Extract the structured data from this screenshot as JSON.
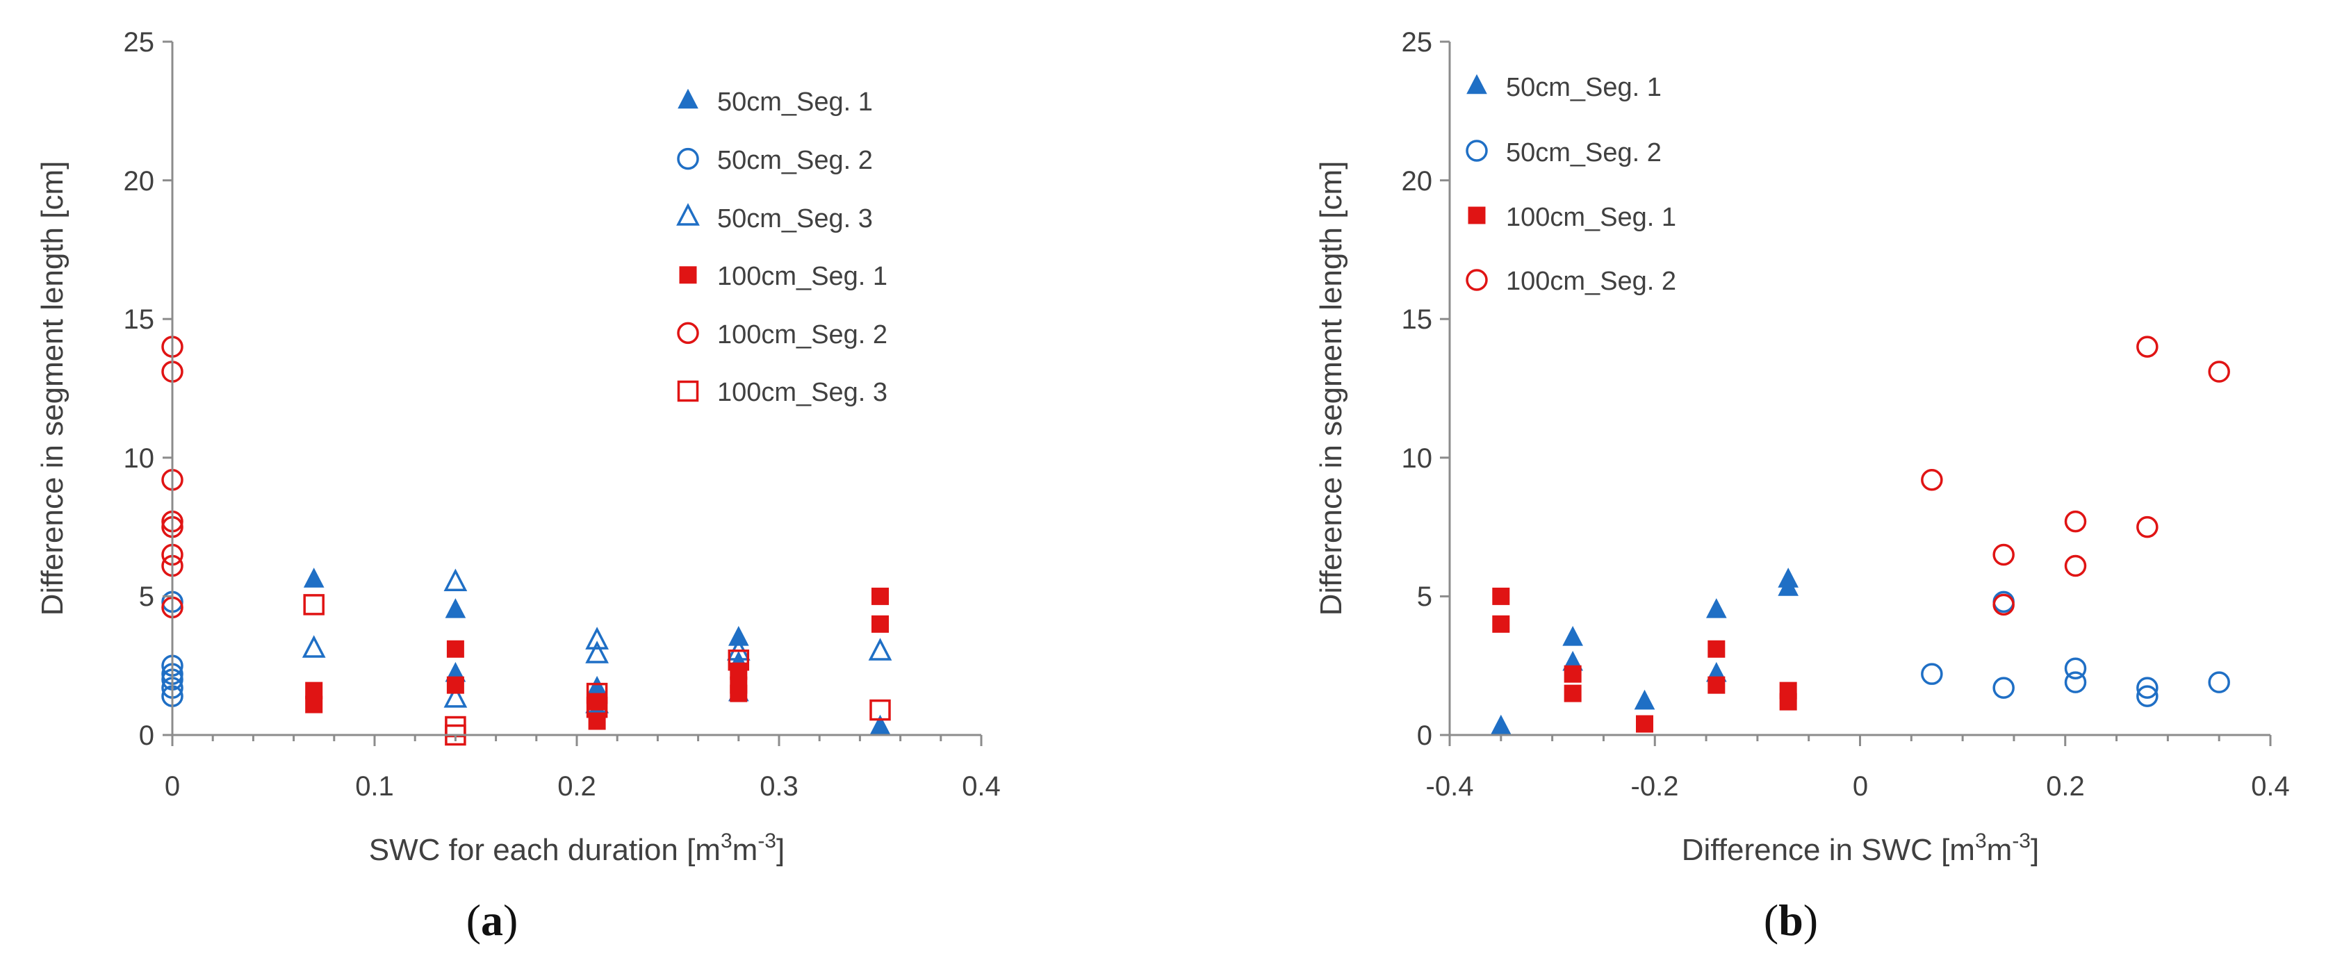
{
  "colors": {
    "blue": "#1f6fc5",
    "red": "#e01414",
    "axis": "#8c8c8c",
    "text": "#404040"
  },
  "chart_data": [
    {
      "type": "scatter",
      "panel_label": {
        "open": "(",
        "letter": "a",
        "close": ")"
      },
      "title": "",
      "xlabel": {
        "main": "SWC for each duration [m",
        "sup1": "3",
        "mid": "m",
        "sup2": "-3",
        "end": "]"
      },
      "ylabel": "Difference in segment length [cm]",
      "xlim": [
        0,
        0.4
      ],
      "ylim": [
        0,
        25
      ],
      "xticks": [
        0,
        0.1,
        0.2,
        0.3,
        0.4
      ],
      "xtick_labels": [
        "0",
        "0.1",
        "0.2",
        "0.3",
        "0.4"
      ],
      "yticks": [
        0,
        5,
        10,
        15,
        20,
        25
      ],
      "ytick_labels": [
        "0",
        "5",
        "10",
        "15",
        "20",
        "25"
      ],
      "legend_position": "top-right",
      "series": [
        {
          "name": "50cm_Seg. 1",
          "marker": "triangle",
          "filled": true,
          "color": "#1f6fc5",
          "points": [
            [
              0.07,
              5.6
            ],
            [
              0.14,
              4.5
            ],
            [
              0.14,
              2.2
            ],
            [
              0.21,
              1.7
            ],
            [
              0.21,
              0.9
            ],
            [
              0.28,
              3.5
            ],
            [
              0.28,
              2.6
            ],
            [
              0.28,
              1.5
            ],
            [
              0.35,
              0.3
            ]
          ]
        },
        {
          "name": "50cm_Seg. 2",
          "marker": "circle",
          "filled": false,
          "color": "#1f6fc5",
          "points": [
            [
              0,
              4.8
            ],
            [
              0,
              2.5
            ],
            [
              0,
              2.2
            ],
            [
              0,
              2.0
            ],
            [
              0,
              1.7
            ],
            [
              0,
              1.4
            ]
          ]
        },
        {
          "name": "50cm_Seg. 3",
          "marker": "triangle",
          "filled": false,
          "color": "#1f6fc5",
          "points": [
            [
              0.07,
              3.1
            ],
            [
              0.14,
              5.5
            ],
            [
              0.14,
              1.3
            ],
            [
              0.21,
              3.4
            ],
            [
              0.21,
              2.9
            ],
            [
              0.21,
              1.1
            ],
            [
              0.28,
              3.0
            ],
            [
              0.35,
              3.0
            ]
          ]
        },
        {
          "name": "100cm_Seg. 1",
          "marker": "square",
          "filled": true,
          "color": "#e01414",
          "points": [
            [
              0.07,
              1.6
            ],
            [
              0.07,
              1.1
            ],
            [
              0.14,
              3.1
            ],
            [
              0.14,
              1.8
            ],
            [
              0.21,
              1.2
            ],
            [
              0.21,
              0.5
            ],
            [
              0.28,
              2.3
            ],
            [
              0.28,
              1.8
            ],
            [
              0.28,
              1.5
            ],
            [
              0.35,
              5.0
            ],
            [
              0.35,
              4.0
            ]
          ]
        },
        {
          "name": "100cm_Seg. 2",
          "marker": "circle",
          "filled": false,
          "color": "#e01414",
          "points": [
            [
              0,
              14.0
            ],
            [
              0,
              13.1
            ],
            [
              0,
              9.2
            ],
            [
              0,
              7.7
            ],
            [
              0,
              7.5
            ],
            [
              0,
              6.5
            ],
            [
              0,
              6.1
            ],
            [
              0,
              4.6
            ]
          ]
        },
        {
          "name": "100cm_Seg. 3",
          "marker": "square",
          "filled": false,
          "color": "#e01414",
          "points": [
            [
              0.07,
              4.7
            ],
            [
              0.14,
              0.3
            ],
            [
              0.14,
              0.0
            ],
            [
              0.21,
              1.5
            ],
            [
              0.21,
              1.0
            ],
            [
              0.28,
              2.7
            ],
            [
              0.35,
              0.9
            ]
          ]
        }
      ]
    },
    {
      "type": "scatter",
      "panel_label": {
        "open": "(",
        "letter": "b",
        "close": ")"
      },
      "title": "",
      "xlabel": {
        "main": "Difference in SWC [m",
        "sup1": "3",
        "mid": "m",
        "sup2": "-3",
        "end": "]"
      },
      "ylabel": "Difference in segment length [cm]",
      "xlim": [
        -0.4,
        0.4
      ],
      "ylim": [
        0,
        25
      ],
      "xticks": [
        -0.4,
        -0.2,
        0,
        0.2,
        0.4
      ],
      "xtick_labels": [
        "-0.4",
        "-0.2",
        "0",
        "0.2",
        "0.4"
      ],
      "yticks": [
        0,
        5,
        10,
        15,
        20,
        25
      ],
      "ytick_labels": [
        "0",
        "5",
        "10",
        "15",
        "20",
        "25"
      ],
      "legend_position": "top-left",
      "series": [
        {
          "name": "50cm_Seg. 1",
          "marker": "triangle",
          "filled": true,
          "color": "#1f6fc5",
          "points": [
            [
              -0.35,
              0.3
            ],
            [
              -0.28,
              3.5
            ],
            [
              -0.28,
              2.6
            ],
            [
              -0.21,
              1.2
            ],
            [
              -0.14,
              4.5
            ],
            [
              -0.14,
              2.2
            ],
            [
              -0.07,
              5.6
            ],
            [
              -0.07,
              5.3
            ]
          ]
        },
        {
          "name": "50cm_Seg. 2",
          "marker": "circle",
          "filled": false,
          "color": "#1f6fc5",
          "points": [
            [
              0.07,
              2.2
            ],
            [
              0.14,
              4.8
            ],
            [
              0.14,
              1.7
            ],
            [
              0.21,
              2.4
            ],
            [
              0.21,
              1.9
            ],
            [
              0.28,
              1.7
            ],
            [
              0.28,
              1.4
            ],
            [
              0.35,
              1.9
            ]
          ]
        },
        {
          "name": "100cm_Seg. 1",
          "marker": "square",
          "filled": true,
          "color": "#e01414",
          "points": [
            [
              -0.35,
              5.0
            ],
            [
              -0.35,
              4.0
            ],
            [
              -0.28,
              2.2
            ],
            [
              -0.28,
              1.5
            ],
            [
              -0.21,
              0.4
            ],
            [
              -0.14,
              3.1
            ],
            [
              -0.14,
              1.8
            ],
            [
              -0.07,
              1.6
            ],
            [
              -0.07,
              1.2
            ]
          ]
        },
        {
          "name": "100cm_Seg. 2",
          "marker": "circle",
          "filled": false,
          "color": "#e01414",
          "points": [
            [
              0.07,
              9.2
            ],
            [
              0.14,
              6.5
            ],
            [
              0.14,
              4.7
            ],
            [
              0.21,
              7.7
            ],
            [
              0.21,
              6.1
            ],
            [
              0.28,
              14.0
            ],
            [
              0.28,
              7.5
            ],
            [
              0.35,
              13.1
            ]
          ]
        }
      ]
    }
  ]
}
